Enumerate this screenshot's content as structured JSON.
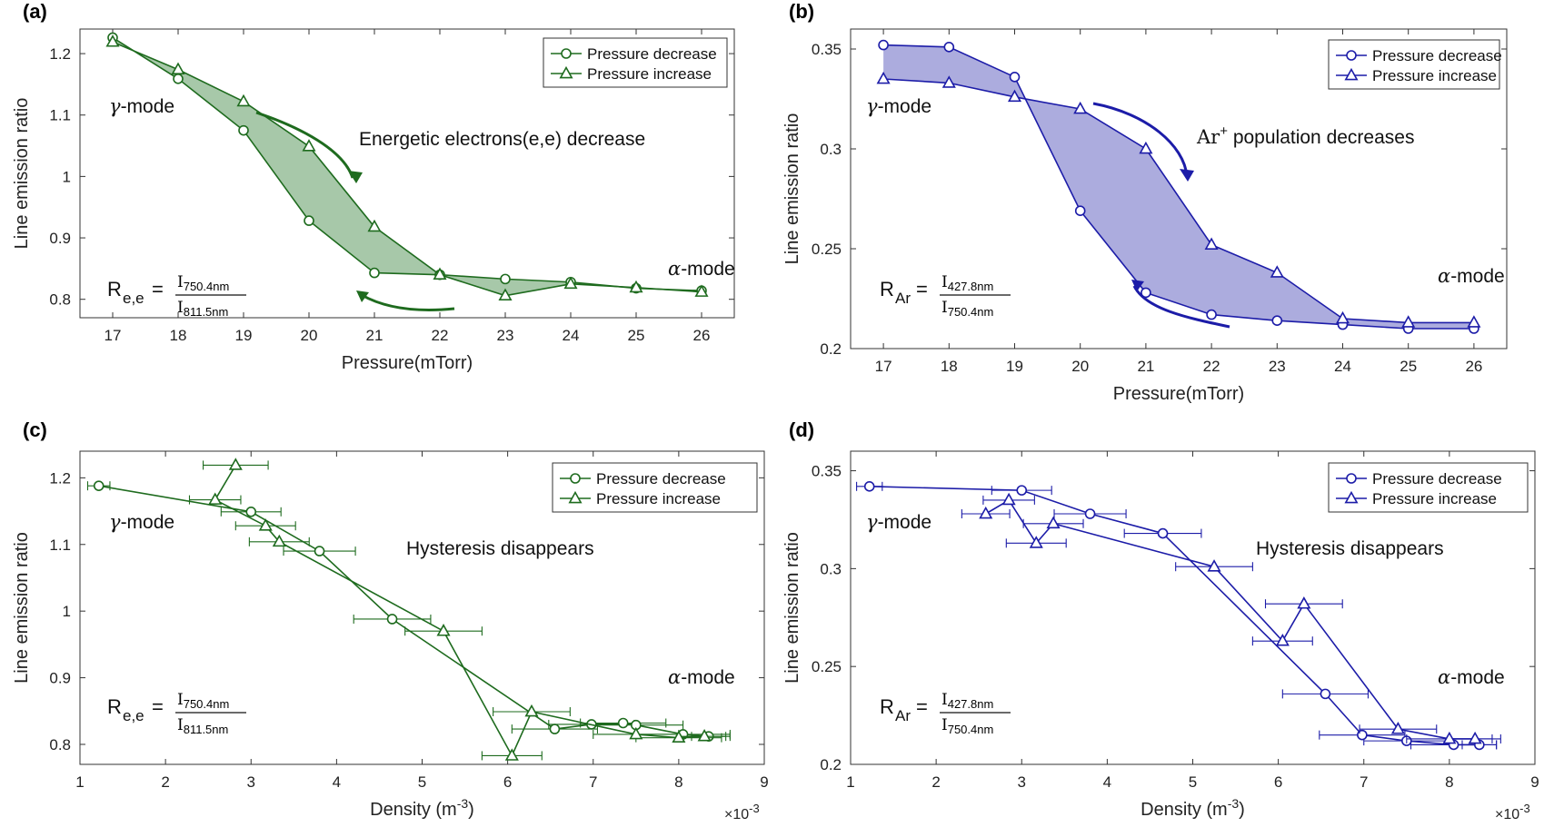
{
  "chart_data": [
    {
      "id": "a",
      "type": "line",
      "panel_label": "(a)",
      "xlabel": "Pressure(mTorr)",
      "ylabel": "Line emission ratio",
      "xlim": [
        16.5,
        26.5
      ],
      "ylim": [
        0.77,
        1.24
      ],
      "xticks": [
        17,
        18,
        19,
        20,
        21,
        22,
        23,
        24,
        25,
        26
      ],
      "xtick_labels": [
        "17",
        "18",
        "19",
        "20",
        "21",
        "22",
        "23",
        "24",
        "25",
        "26"
      ],
      "yticks": [
        0.8,
        0.9,
        1.0,
        1.1,
        1.2
      ],
      "ytick_labels": [
        "0.8",
        "0.9",
        "1",
        "1.1",
        "1.2"
      ],
      "color": "#1e6b1e",
      "fill_color": "#2e7d32",
      "legend": [
        "Pressure decrease",
        "Pressure increase"
      ],
      "legend_position": "top-right",
      "series": [
        {
          "name": "Pressure decrease",
          "marker": "circle",
          "x": [
            17,
            18,
            19,
            20,
            21,
            22,
            23,
            24,
            25,
            26
          ],
          "y": [
            1.226,
            1.159,
            1.075,
            0.928,
            0.843,
            0.84,
            0.833,
            0.828,
            0.818,
            0.814
          ]
        },
        {
          "name": "Pressure increase",
          "marker": "triangle",
          "x": [
            17,
            18,
            19,
            20,
            21,
            22,
            23,
            24,
            25,
            26
          ],
          "y": [
            1.219,
            1.174,
            1.122,
            1.049,
            0.918,
            0.84,
            0.806,
            0.825,
            0.819,
            0.812
          ]
        }
      ],
      "hysteresis_fill": true,
      "annotations": {
        "effect_text": "Energetic electrons(e,e) decrease",
        "gamma_sym": "γ",
        "gamma_text": "-mode",
        "alpha_sym": "α",
        "alpha_text": "-mode",
        "formula_lhs_main": "R",
        "formula_lhs_sub": "e,e",
        "formula_equals": "=",
        "formula_num_I": "I",
        "formula_num_sub": "750.4nm",
        "formula_den_I": "I",
        "formula_den_sub": "811.5nm"
      }
    },
    {
      "id": "b",
      "type": "line",
      "panel_label": "(b)",
      "xlabel": "Pressure(mTorr)",
      "ylabel": "Line emission ratio",
      "xlim": [
        16.5,
        26.5
      ],
      "ylim": [
        0.2,
        0.36
      ],
      "xticks": [
        17,
        18,
        19,
        20,
        21,
        22,
        23,
        24,
        25,
        26
      ],
      "xtick_labels": [
        "17",
        "18",
        "19",
        "20",
        "21",
        "22",
        "23",
        "24",
        "25",
        "26"
      ],
      "yticks": [
        0.2,
        0.25,
        0.3,
        0.35
      ],
      "ytick_labels": [
        "0.2",
        "0.25",
        "0.3",
        "0.35"
      ],
      "color": "#1c1ca8",
      "fill_color": "#3a3ab0",
      "legend": [
        "Pressure decrease",
        "Pressure increase"
      ],
      "legend_position": "top-right",
      "series": [
        {
          "name": "Pressure decrease",
          "marker": "circle",
          "x": [
            17,
            18,
            19,
            20,
            21,
            22,
            23,
            24,
            25,
            26
          ],
          "y": [
            0.352,
            0.351,
            0.336,
            0.269,
            0.228,
            0.217,
            0.214,
            0.212,
            0.21,
            0.21
          ]
        },
        {
          "name": "Pressure increase",
          "marker": "triangle",
          "x": [
            17,
            18,
            19,
            20,
            21,
            22,
            23,
            24,
            25,
            26
          ],
          "y": [
            0.335,
            0.333,
            0.326,
            0.32,
            0.3,
            0.252,
            0.238,
            0.215,
            0.213,
            0.213
          ]
        }
      ],
      "hysteresis_fill": true,
      "annotations": {
        "effect_prefix": "Ar",
        "effect_sup": "+",
        "effect_text": " population decreases",
        "gamma_sym": "γ",
        "gamma_text": "-mode",
        "alpha_sym": "α",
        "alpha_text": "-mode",
        "formula_lhs_main": "R",
        "formula_lhs_sub": "Ar",
        "formula_equals": "=",
        "formula_num_I": "I",
        "formula_num_sub": "427.8nm",
        "formula_den_I": "I",
        "formula_den_sub": "750.4nm"
      }
    },
    {
      "id": "c",
      "type": "line",
      "panel_label": "(c)",
      "xlabel": "Density (m",
      "xlabel_sup": "-3",
      "xlabel_close": ")",
      "ylabel": "Line emission ratio",
      "xlim": [
        1,
        9
      ],
      "ylim": [
        0.77,
        1.24
      ],
      "xticks": [
        1,
        2,
        3,
        4,
        5,
        6,
        7,
        8,
        9
      ],
      "xtick_labels": [
        "1",
        "2",
        "3",
        "4",
        "5",
        "6",
        "7",
        "8",
        "9"
      ],
      "yticks": [
        0.8,
        0.9,
        1.0,
        1.1,
        1.2
      ],
      "ytick_labels": [
        "0.8",
        "0.9",
        "1",
        "1.1",
        "1.2"
      ],
      "x_multiplier_base": "×10",
      "x_multiplier_exp": "-3",
      "color": "#1e6b1e",
      "legend": [
        "Pressure decrease",
        "Pressure increase"
      ],
      "legend_position": "top-right",
      "series": [
        {
          "name": "Pressure decrease",
          "marker": "circle",
          "x": [
            1.22,
            3.0,
            3.8,
            4.65,
            6.55,
            6.98,
            7.35,
            7.5,
            8.05,
            8.35
          ],
          "y": [
            1.188,
            1.149,
            1.09,
            0.988,
            0.823,
            0.83,
            0.832,
            0.829,
            0.815,
            0.812
          ],
          "xerr": [
            0.13,
            0.35,
            0.42,
            0.45,
            0.5,
            0.5,
            0.5,
            0.55,
            0.55,
            0.2
          ]
        },
        {
          "name": "Pressure increase",
          "marker": "triangle",
          "x": [
            2.82,
            2.58,
            3.17,
            3.33,
            5.25,
            6.05,
            6.28,
            7.5,
            8.0,
            8.3
          ],
          "y": [
            1.219,
            1.167,
            1.128,
            1.104,
            0.97,
            0.783,
            0.849,
            0.815,
            0.81,
            0.812
          ],
          "xerr": [
            0.38,
            0.3,
            0.35,
            0.35,
            0.45,
            0.35,
            0.45,
            0.5,
            0.5,
            0.3
          ]
        }
      ],
      "hysteresis_fill": false,
      "annotations": {
        "effect_text": "Hysteresis disappears",
        "gamma_sym": "γ",
        "gamma_text": "-mode",
        "alpha_sym": "α",
        "alpha_text": "-mode",
        "formula_lhs_main": "R",
        "formula_lhs_sub": "e,e",
        "formula_equals": "=",
        "formula_num_I": "I",
        "formula_num_sub": "750.4nm",
        "formula_den_I": "I",
        "formula_den_sub": "811.5nm"
      }
    },
    {
      "id": "d",
      "type": "line",
      "panel_label": "(d)",
      "xlabel": "Density (m",
      "xlabel_sup": "-3",
      "xlabel_close": ")",
      "ylabel": "Line emission ratio",
      "xlim": [
        1,
        9
      ],
      "ylim": [
        0.2,
        0.36
      ],
      "xticks": [
        1,
        2,
        3,
        4,
        5,
        6,
        7,
        8,
        9
      ],
      "xtick_labels": [
        "1",
        "2",
        "3",
        "4",
        "5",
        "6",
        "7",
        "8",
        "9"
      ],
      "yticks": [
        0.2,
        0.25,
        0.3,
        0.35
      ],
      "ytick_labels": [
        "0.2",
        "0.25",
        "0.3",
        "0.35"
      ],
      "x_multiplier_base": "×10",
      "x_multiplier_exp": "-3",
      "color": "#1c1ca8",
      "legend": [
        "Pressure decrease",
        "Pressure increase"
      ],
      "legend_position": "top-right",
      "series": [
        {
          "name": "Pressure decrease",
          "marker": "circle",
          "x": [
            1.22,
            3.0,
            3.8,
            4.65,
            6.55,
            6.98,
            7.5,
            8.05,
            8.35
          ],
          "y": [
            0.342,
            0.34,
            0.328,
            0.318,
            0.236,
            0.215,
            0.212,
            0.21,
            0.21
          ],
          "xerr": [
            0.15,
            0.35,
            0.42,
            0.45,
            0.5,
            0.5,
            0.5,
            0.5,
            0.2
          ]
        },
        {
          "name": "Pressure increase",
          "marker": "triangle",
          "x": [
            2.58,
            2.85,
            3.17,
            3.37,
            5.25,
            6.05,
            6.3,
            7.4,
            8.0,
            8.3
          ],
          "y": [
            0.328,
            0.335,
            0.313,
            0.323,
            0.301,
            0.263,
            0.282,
            0.218,
            0.213,
            0.213
          ],
          "xerr": [
            0.28,
            0.3,
            0.35,
            0.35,
            0.45,
            0.35,
            0.45,
            0.45,
            0.5,
            0.3
          ]
        }
      ],
      "hysteresis_fill": false,
      "annotations": {
        "effect_text": "Hysteresis disappears",
        "gamma_sym": "γ",
        "gamma_text": "-mode",
        "alpha_sym": "α",
        "alpha_text": "-mode",
        "formula_lhs_main": "R",
        "formula_lhs_sub": "Ar",
        "formula_equals": "=",
        "formula_num_I": "I",
        "formula_num_sub": "427.8nm",
        "formula_den_I": "I",
        "formula_den_sub": "750.4nm"
      }
    }
  ]
}
